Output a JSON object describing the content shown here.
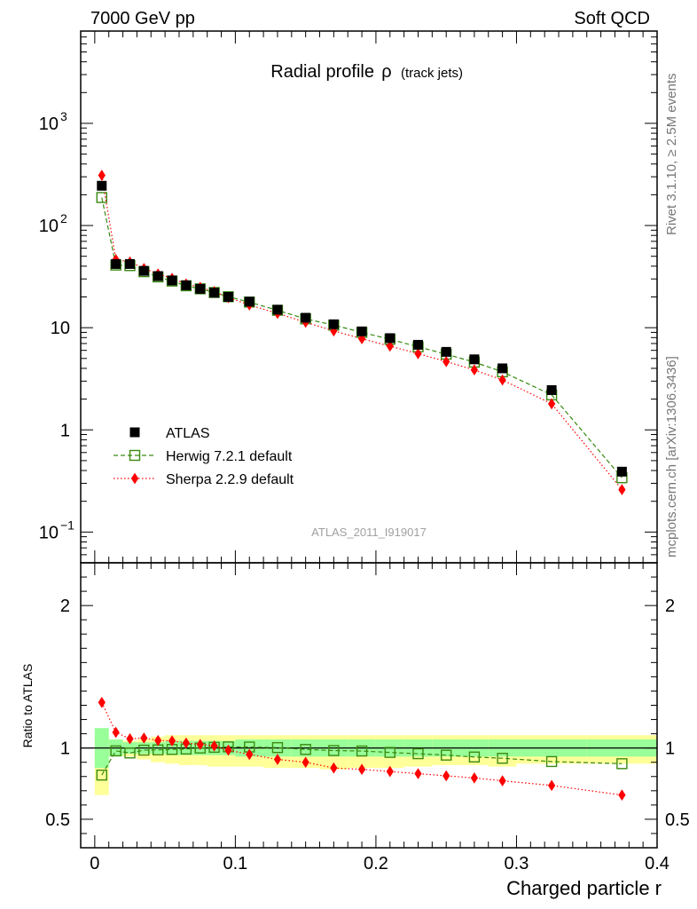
{
  "header": {
    "left": "7000 GeV pp",
    "right": "Soft QCD"
  },
  "side_text": {
    "upper": "Rivet 3.1.10, ≥ 2.5M events",
    "lower": "mcplots.cern.ch [arXiv:1306.3436]"
  },
  "chart_data": {
    "type": "scatter",
    "title": "Radial profile",
    "title_symbol": "ρ",
    "title_suffix": "(track jets)",
    "analysis_id": "ATLAS_2011_I919017",
    "xlabel": "Charged particle r",
    "xlim": [
      -0.01,
      0.4
    ],
    "x_ticks": [
      {
        "v": 0,
        "label": "0"
      },
      {
        "v": 0.1,
        "label": "0.1"
      },
      {
        "v": 0.2,
        "label": "0.2"
      },
      {
        "v": 0.3,
        "label": "0.3"
      },
      {
        "v": 0.4,
        "label": "0.4"
      }
    ],
    "upper": {
      "scale": "log",
      "ylim": [
        0.05,
        8000
      ],
      "y_ticks": [
        {
          "v": 0.1,
          "base": "10",
          "exp": "−1"
        },
        {
          "v": 1,
          "base": "1",
          "exp": ""
        },
        {
          "v": 10,
          "base": "10",
          "exp": ""
        },
        {
          "v": 100,
          "base": "10",
          "exp": "2"
        },
        {
          "v": 1000,
          "base": "10",
          "exp": "3"
        }
      ]
    },
    "lower": {
      "ylabel": "Ratio to ATLAS",
      "ylim": [
        0.3,
        2.3
      ],
      "y_ticks": [
        {
          "v": 0.5,
          "label": "0.5"
        },
        {
          "v": 1,
          "label": "1"
        },
        {
          "v": 2,
          "label": "2"
        }
      ]
    },
    "x": [
      0.005,
      0.015,
      0.025,
      0.035,
      0.045,
      0.055,
      0.065,
      0.075,
      0.085,
      0.095,
      0.11,
      0.13,
      0.15,
      0.17,
      0.19,
      0.21,
      0.23,
      0.25,
      0.27,
      0.29,
      0.325,
      0.375
    ],
    "bin_edges": [
      0,
      0.01,
      0.02,
      0.03,
      0.04,
      0.05,
      0.06,
      0.07,
      0.08,
      0.09,
      0.1,
      0.12,
      0.14,
      0.16,
      0.18,
      0.2,
      0.22,
      0.24,
      0.26,
      0.28,
      0.3,
      0.35,
      0.4
    ],
    "band": {
      "inner": [
        0.14,
        0.06,
        0.04,
        0.04,
        0.04,
        0.05,
        0.05,
        0.05,
        0.05,
        0.05,
        0.06,
        0.06,
        0.06,
        0.06,
        0.06,
        0.06,
        0.06,
        0.06,
        0.06,
        0.06,
        0.06,
        0.06
      ],
      "outer": [
        0.33,
        0.05,
        0.06,
        0.08,
        0.1,
        0.11,
        0.12,
        0.12,
        0.13,
        0.13,
        0.13,
        0.14,
        0.14,
        0.15,
        0.14,
        0.14,
        0.13,
        0.12,
        0.12,
        0.13,
        0.11,
        0.11
      ],
      "outer_up": [
        0.1,
        0.05,
        0.05,
        0.06,
        0.08,
        0.09,
        0.09,
        0.09,
        0.09,
        0.09,
        0.09,
        0.09,
        0.09,
        0.09,
        0.09,
        0.09,
        0.09,
        0.09,
        0.09,
        0.09,
        0.09,
        0.09
      ],
      "colors": {
        "outer": "#ffff99",
        "inner": "#99ff99"
      }
    },
    "series": [
      {
        "name": "ATLAS",
        "color": "#000000",
        "marker": "filled-square",
        "values": [
          245,
          42,
          42,
          36,
          32,
          29,
          26,
          24,
          22,
          20,
          18,
          15,
          12.5,
          10.8,
          9.2,
          7.9,
          6.8,
          5.8,
          4.9,
          4.0,
          2.45,
          0.39
        ],
        "ratio": [
          1,
          1,
          1,
          1,
          1,
          1,
          1,
          1,
          1,
          1,
          1,
          1,
          1,
          1,
          1,
          1,
          1,
          1,
          1,
          1,
          1,
          1
        ]
      },
      {
        "name": "Herwig 7.2.1 default",
        "color": "#3a8a10",
        "marker": "open-square",
        "line": "dashed",
        "values": [
          188,
          41,
          40.5,
          35.3,
          31.4,
          28.6,
          25.7,
          24,
          22.1,
          20.1,
          17.8,
          14.8,
          12.2,
          10.6,
          9.0,
          7.7,
          6.5,
          5.5,
          4.6,
          3.7,
          2.2,
          0.34
        ],
        "ratio": [
          0.81,
          0.98,
          0.965,
          0.985,
          0.987,
          0.99,
          0.993,
          1.0,
          1.005,
          1.008,
          1.007,
          1.003,
          0.99,
          0.982,
          0.979,
          0.969,
          0.96,
          0.95,
          0.937,
          0.928,
          0.905,
          0.89
        ]
      },
      {
        "name": "Sherpa 2.2.9 default",
        "color": "#ff0000",
        "marker": "diamond",
        "line": "dotted",
        "values": [
          310,
          46.5,
          44,
          38,
          33.6,
          30.4,
          26.8,
          24.8,
          22.6,
          19.7,
          16.7,
          13.8,
          11.3,
          9.3,
          7.8,
          6.6,
          5.57,
          4.66,
          3.86,
          3.08,
          1.8,
          0.26
        ],
        "ratio": [
          1.32,
          1.11,
          1.065,
          1.07,
          1.053,
          1.05,
          1.035,
          1.025,
          1.015,
          0.985,
          0.955,
          0.92,
          0.9,
          0.86,
          0.85,
          0.835,
          0.82,
          0.805,
          0.79,
          0.77,
          0.737,
          0.67
        ]
      }
    ],
    "legend_position": "middle-left"
  }
}
